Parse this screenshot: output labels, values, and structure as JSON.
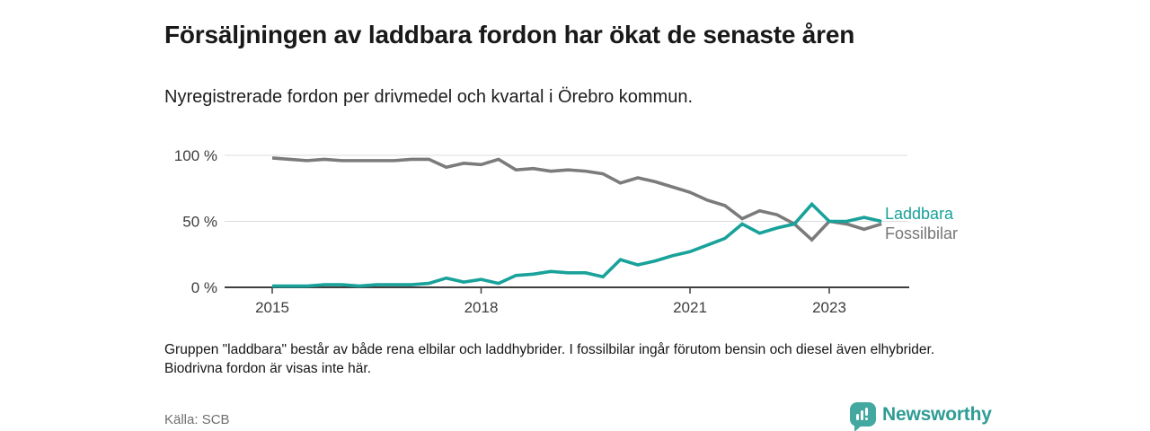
{
  "header": {
    "title": "Försäljningen av laddbara fordon har ökat de senaste åren",
    "subtitle": "Nyregistrerade fordon per drivmedel och kvartal i Örebro kommun."
  },
  "chart_data": {
    "type": "line",
    "title": "Nyregistrerade fordon per drivmedel och kvartal i Örebro kommun",
    "x_unit": "quarter",
    "y_unit": "%",
    "ylim": [
      0,
      100
    ],
    "grid": "horizontal",
    "legend_position": "right-of-line-ends",
    "x": [
      "2015Q1",
      "2015Q2",
      "2015Q3",
      "2015Q4",
      "2016Q1",
      "2016Q2",
      "2016Q3",
      "2016Q4",
      "2017Q1",
      "2017Q2",
      "2017Q3",
      "2017Q4",
      "2018Q1",
      "2018Q2",
      "2018Q3",
      "2018Q4",
      "2019Q1",
      "2019Q2",
      "2019Q3",
      "2019Q4",
      "2020Q1",
      "2020Q2",
      "2020Q3",
      "2020Q4",
      "2021Q1",
      "2021Q2",
      "2021Q3",
      "2021Q4",
      "2022Q1",
      "2022Q2",
      "2022Q3",
      "2022Q4",
      "2023Q1",
      "2023Q2",
      "2023Q3",
      "2023Q4"
    ],
    "yticks": [
      {
        "label": "0 %",
        "value": 0
      },
      {
        "label": "50 %",
        "value": 50
      },
      {
        "label": "100 %",
        "value": 100
      }
    ],
    "xticks": [
      {
        "label": "2015",
        "year": 2015
      },
      {
        "label": "2018",
        "year": 2018
      },
      {
        "label": "2021",
        "year": 2021
      },
      {
        "label": "2023",
        "year": 2023
      }
    ],
    "series": [
      {
        "name": "Fossilbilar",
        "color": "#7b7b7b",
        "values": [
          98,
          97,
          96,
          97,
          96,
          96,
          96,
          96,
          97,
          97,
          91,
          94,
          93,
          97,
          89,
          90,
          88,
          89,
          88,
          86,
          79,
          83,
          80,
          76,
          72,
          66,
          62,
          52,
          58,
          55,
          48,
          36,
          50,
          48,
          44,
          48
        ]
      },
      {
        "name": "Laddbara",
        "color": "#18a29a",
        "values": [
          1,
          1,
          1,
          2,
          2,
          1,
          2,
          2,
          2,
          3,
          7,
          4,
          6,
          3,
          9,
          10,
          12,
          11,
          11,
          8,
          21,
          17,
          20,
          24,
          27,
          32,
          37,
          48,
          41,
          45,
          48,
          63,
          50,
          50,
          53,
          50
        ]
      }
    ]
  },
  "legend": {
    "items": [
      {
        "label": "Laddbara",
        "color": "#18a29a"
      },
      {
        "label": "Fossilbilar",
        "color": "#767676"
      }
    ]
  },
  "footnote": "Gruppen \"laddbara\" består av både rena elbilar och laddhybrider. I fossilbilar ingår förutom bensin och diesel även elhybrider. Biodrivna fordon är visas inte här.",
  "source": "Källa: SCB",
  "branding": {
    "wordmark": "Newsworthy",
    "logo_color": "#43a89f",
    "logo_icon": "bar-chart-speech-bubble"
  }
}
